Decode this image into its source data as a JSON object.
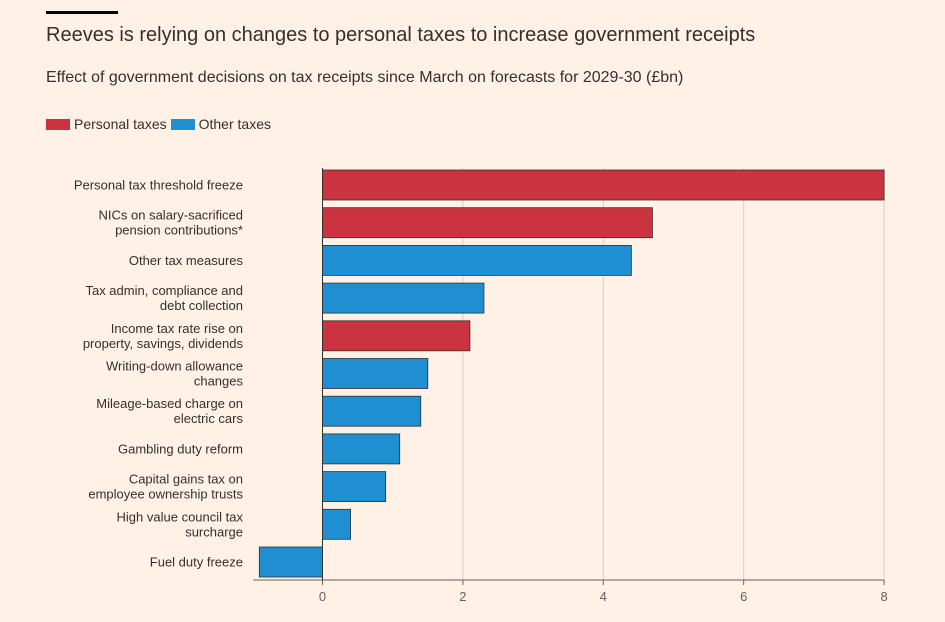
{
  "title": "Reeves is relying on changes to personal taxes to increase government receipts",
  "subtitle": "Effect of government decisions on tax receipts since March on forecasts for 2029-30 (£bn)",
  "colors": {
    "personal": "#cc3340",
    "other": "#1f8fd2",
    "background": "#fff1e5",
    "grid": "#d9cfc6"
  },
  "legend": [
    {
      "label": "Personal taxes",
      "group": "personal"
    },
    {
      "label": "Other taxes",
      "group": "other"
    }
  ],
  "chart_data": {
    "type": "bar",
    "orientation": "horizontal",
    "title": "Reeves is relying on changes to personal taxes to increase government receipts",
    "xlabel": "",
    "ylabel": "",
    "xlim": [
      -0.9,
      8
    ],
    "xticks": [
      0,
      2,
      4,
      6,
      8
    ],
    "grid": true,
    "legend_position": "top-left",
    "bars": [
      {
        "lines": [
          "Personal tax threshold freeze"
        ],
        "value": 8.0,
        "group": "personal"
      },
      {
        "lines": [
          "NICs on salary-sacrificed",
          "pension contributions*"
        ],
        "value": 4.7,
        "group": "personal"
      },
      {
        "lines": [
          "Other tax measures"
        ],
        "value": 4.4,
        "group": "other"
      },
      {
        "lines": [
          "Tax admin, compliance and",
          "debt collection"
        ],
        "value": 2.3,
        "group": "other"
      },
      {
        "lines": [
          "Income tax rate rise on",
          "property, savings, dividends"
        ],
        "value": 2.1,
        "group": "personal"
      },
      {
        "lines": [
          "Writing-down allowance",
          "changes"
        ],
        "value": 1.5,
        "group": "other"
      },
      {
        "lines": [
          "Mileage-based charge on",
          "electric cars"
        ],
        "value": 1.4,
        "group": "other"
      },
      {
        "lines": [
          "Gambling duty reform"
        ],
        "value": 1.1,
        "group": "other"
      },
      {
        "lines": [
          "Capital gains tax on",
          "employee ownership trusts"
        ],
        "value": 0.9,
        "group": "other"
      },
      {
        "lines": [
          "High value council tax",
          "surcharge"
        ],
        "value": 0.4,
        "group": "other"
      },
      {
        "lines": [
          "Fuel duty freeze"
        ],
        "value": -0.9,
        "group": "other"
      }
    ]
  }
}
